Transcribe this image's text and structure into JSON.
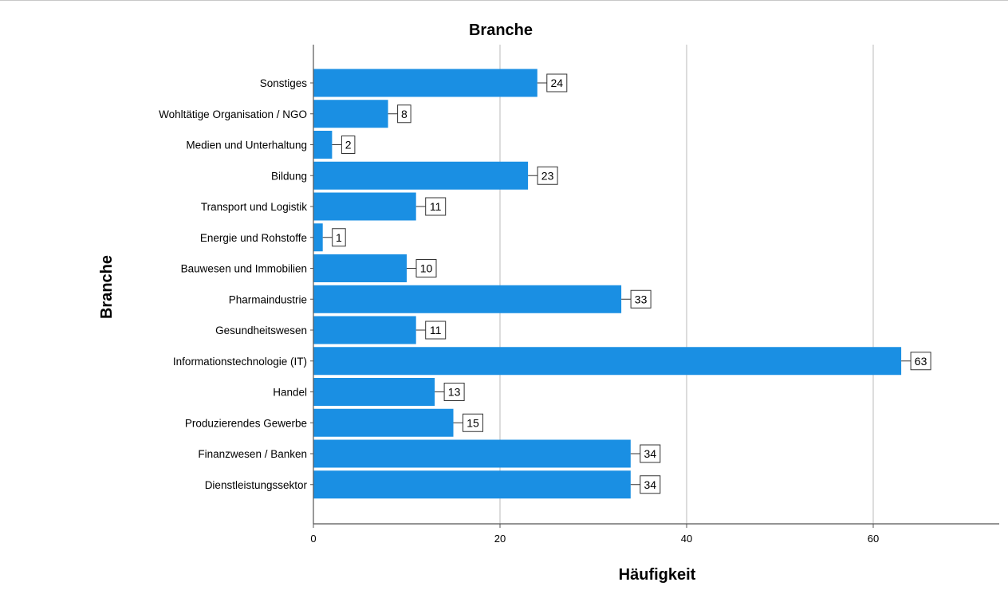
{
  "chart_data": {
    "type": "bar",
    "orientation": "horizontal",
    "title": "Branche",
    "xlabel": "Häufigkeit",
    "ylabel": "Branche",
    "categories": [
      "Sonstiges",
      "Wohltätige Organisation / NGO",
      "Medien und Unterhaltung",
      "Bildung",
      "Transport und Logistik",
      "Energie und Rohstoffe",
      "Bauwesen und Immobilien",
      "Pharmaindustrie",
      "Gesundheitswesen",
      "Informationstechnologie (IT)",
      "Handel",
      "Produzierendes Gewerbe",
      "Finanzwesen / Banken",
      "Dienstleistungssektor"
    ],
    "values": [
      24,
      8,
      2,
      23,
      11,
      1,
      10,
      33,
      11,
      63,
      13,
      15,
      34,
      34
    ],
    "xlim": [
      0,
      74
    ],
    "xticks": [
      "0",
      "20",
      "40",
      "60"
    ],
    "grid": "vertical",
    "bar_color": "#1a8fe3",
    "data_labels": true
  }
}
